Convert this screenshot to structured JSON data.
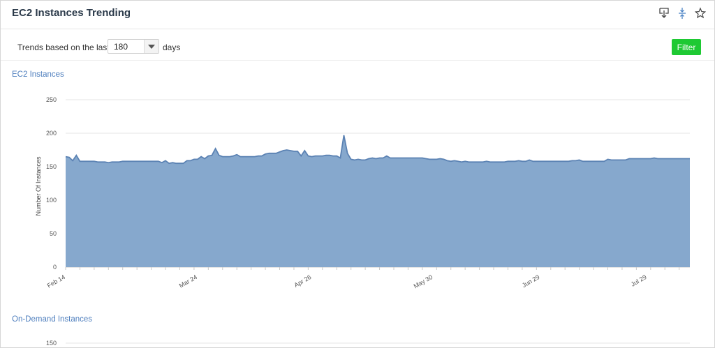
{
  "header": {
    "title": "EC2 Instances Trending",
    "icons": [
      "download-icon",
      "collapse-icon",
      "star-icon"
    ]
  },
  "controls": {
    "prefix": "Trends based on the last",
    "days_value": "180",
    "suffix": "days",
    "filter_label": "Filter"
  },
  "colors": {
    "area_fill": "#86a8cd",
    "area_line": "#5b82b3",
    "section_title": "#4f7fbe",
    "filter_button": "#1ec933"
  },
  "chart_data": [
    {
      "type": "area",
      "title": "EC2 Instances",
      "xlabel": "",
      "ylabel": "Number Of Instances",
      "ylim": [
        0,
        250
      ],
      "yticks": [
        0,
        50,
        100,
        150,
        200,
        250
      ],
      "grid": true,
      "x_tick_labels": [
        "Feb 14",
        "Mar 24",
        "Apr 26",
        "May 30",
        "Jun 29",
        "Jul 29"
      ],
      "series": [
        {
          "values": [
            165,
            164,
            159,
            167,
            158,
            158,
            158,
            158,
            158,
            157,
            157,
            157,
            156,
            157,
            157,
            157,
            158,
            158,
            158,
            158,
            158,
            158,
            158,
            158,
            158,
            158,
            158,
            156,
            159,
            155,
            156,
            155,
            155,
            155,
            159,
            159,
            161,
            161,
            165,
            162,
            166,
            167,
            177,
            167,
            165,
            165,
            165,
            166,
            168,
            165,
            165,
            165,
            165,
            165,
            166,
            166,
            169,
            170,
            170,
            170,
            172,
            174,
            175,
            174,
            173,
            173,
            166,
            174,
            166,
            165,
            166,
            166,
            166,
            167,
            167,
            166,
            166,
            163,
            197,
            170,
            161,
            160,
            161,
            160,
            160,
            162,
            163,
            162,
            163,
            163,
            166,
            163,
            163,
            163,
            163,
            163,
            163,
            163,
            163,
            163,
            163,
            162,
            161,
            161,
            161,
            162,
            161,
            159,
            158,
            159,
            158,
            157,
            158,
            157,
            157,
            157,
            157,
            157,
            158,
            157,
            157,
            157,
            157,
            157,
            158,
            158,
            158,
            159,
            158,
            158,
            160,
            158,
            158,
            158,
            158,
            158,
            158,
            158,
            158,
            158,
            158,
            158,
            159,
            159,
            160,
            158,
            158,
            158,
            158,
            158,
            158,
            158,
            161,
            160,
            160,
            160,
            160,
            160,
            162,
            162,
            162,
            162,
            162,
            162,
            162,
            163,
            162,
            162,
            162,
            162,
            162,
            162,
            162,
            162,
            162,
            162
          ]
        }
      ]
    },
    {
      "type": "area",
      "title": "On-Demand Instances",
      "ylim": [
        0,
        150
      ],
      "yticks": [
        150
      ],
      "series": []
    }
  ]
}
